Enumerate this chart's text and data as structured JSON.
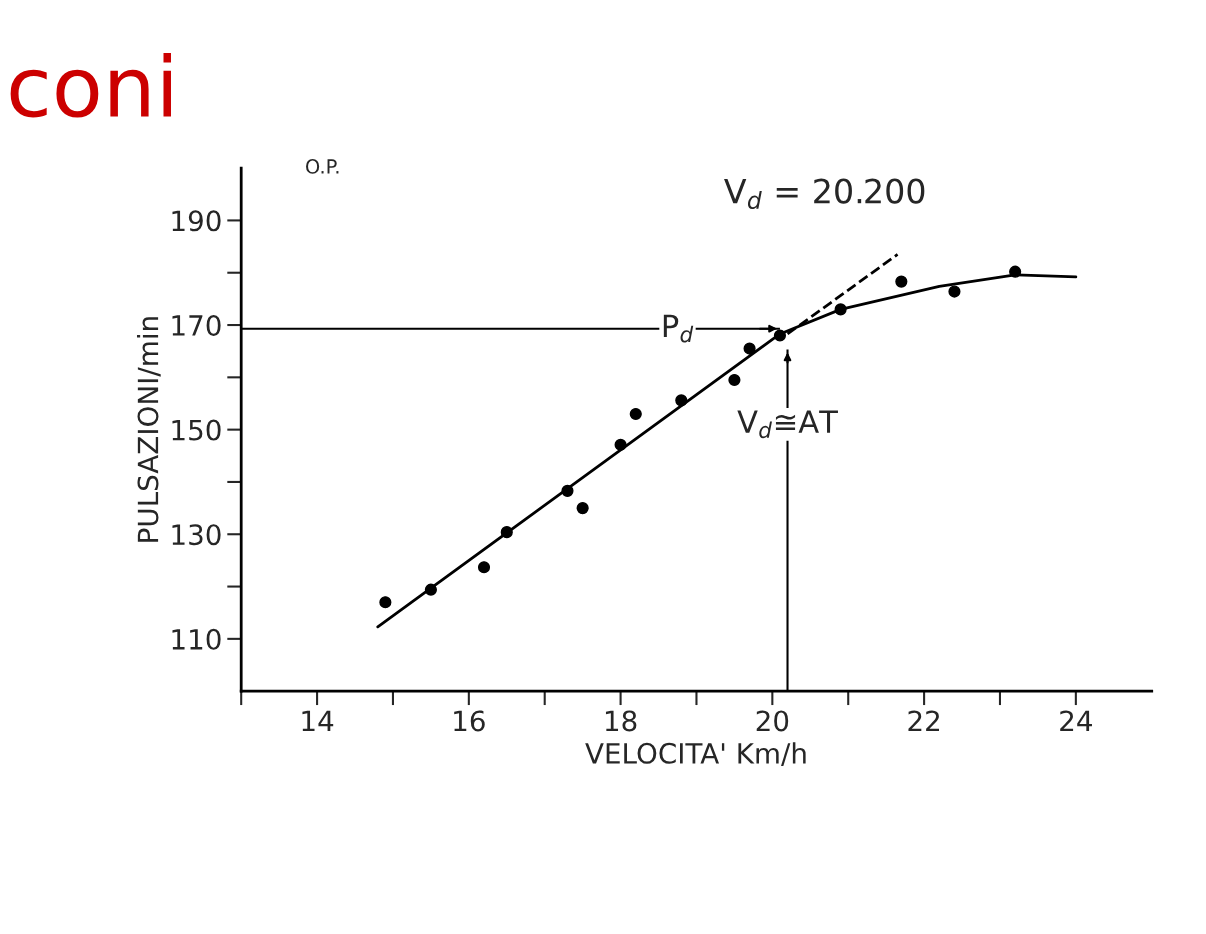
{
  "chart_data": {
    "type": "scatter",
    "title": "coni",
    "xlabel": "VELOCITA' Km/h",
    "ylabel": "PULSAZIONI/min",
    "xlim": [
      13,
      25
    ],
    "ylim": [
      100,
      200
    ],
    "xticks": [
      {
        "value": 13,
        "label": null
      },
      14,
      {
        "value": 15,
        "label": null
      },
      16,
      {
        "value": 17,
        "label": null
      },
      18,
      {
        "value": 19,
        "label": null
      },
      20,
      {
        "value": 21,
        "label": null
      },
      22,
      {
        "value": 23,
        "label": null
      },
      24
    ],
    "yticks": [
      110,
      {
        "value": 120,
        "label": null
      },
      130,
      {
        "value": 140,
        "label": null
      },
      150,
      {
        "value": 160,
        "label": null
      },
      170,
      {
        "value": 180,
        "label": null
      },
      190
    ],
    "grid": false,
    "series": [
      {
        "color": "#000000",
        "marker": "circle",
        "x": [
          14.9,
          15.5,
          16.2,
          16.5,
          17.3,
          17.5,
          18.0,
          18.2,
          18.8,
          19.5,
          19.7,
          20.1,
          20.9,
          21.7,
          22.4,
          23.2
        ],
        "values": [
          117,
          119.4,
          123.7,
          130.4,
          138.3,
          135,
          147.1,
          153,
          155.6,
          159.5,
          165.5,
          168,
          173,
          178.3,
          176.4,
          180.2
        ]
      },
      {
        "type": "line",
        "color": "#000000",
        "marker": "none",
        "line_style": "solid",
        "x": [
          14.8,
          20.1,
          20.9,
          22.2,
          23.2,
          24.0
        ],
        "values": [
          112.3,
          168.3,
          173,
          177.4,
          179.6,
          179.2
        ]
      },
      {
        "type": "line",
        "color": "#000000",
        "marker": "none",
        "line_style": "dashed",
        "x": [
          20.2,
          21.65
        ],
        "values": [
          168.3,
          183.5
        ]
      }
    ],
    "ref_lines": [
      {
        "axis": "y",
        "value": 169.3,
        "label": "P$_{d}$",
        "color": "#000000"
      },
      {
        "axis": "x",
        "value": 20.2,
        "label": "V$_{d}$≅AT",
        "color": "#000000"
      }
    ],
    "annotations": [
      "O.P.",
      "V$_{d}$ = 20.200"
    ]
  }
}
